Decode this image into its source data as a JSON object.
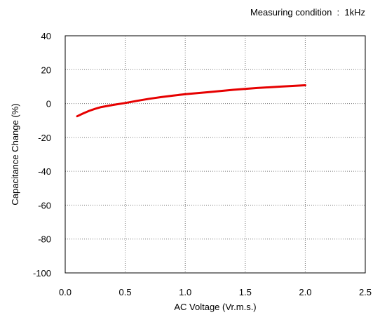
{
  "chart_data": {
    "type": "line",
    "annotation": "Measuring condition  :  1kHz",
    "xlabel": "AC Voltage (Vr.m.s.)",
    "ylabel": "Capacitance Change (%)",
    "xlim": [
      0.0,
      2.5
    ],
    "ylim": [
      -100,
      40
    ],
    "x_ticks": [
      "0.0",
      "0.5",
      "1.0",
      "1.5",
      "2.0",
      "2.5"
    ],
    "x_tick_values": [
      0.0,
      0.5,
      1.0,
      1.5,
      2.0,
      2.5
    ],
    "y_ticks": [
      "40",
      "20",
      "0",
      "-20",
      "-40",
      "-60",
      "-80",
      "-100"
    ],
    "y_tick_values": [
      40,
      20,
      0,
      -20,
      -40,
      -60,
      -80,
      -100
    ],
    "grid": true,
    "series": [
      {
        "color": "#e60000",
        "x": [
          0.1,
          0.15,
          0.2,
          0.25,
          0.3,
          0.4,
          0.5,
          0.6,
          0.7,
          0.8,
          0.9,
          1.0,
          1.2,
          1.4,
          1.6,
          1.8,
          2.0
        ],
        "y": [
          -7.5,
          -5.8,
          -4.3,
          -3.1,
          -2.1,
          -0.8,
          0.3,
          1.6,
          2.8,
          3.8,
          4.7,
          5.5,
          6.8,
          8.1,
          9.2,
          10.0,
          10.8
        ]
      }
    ]
  }
}
